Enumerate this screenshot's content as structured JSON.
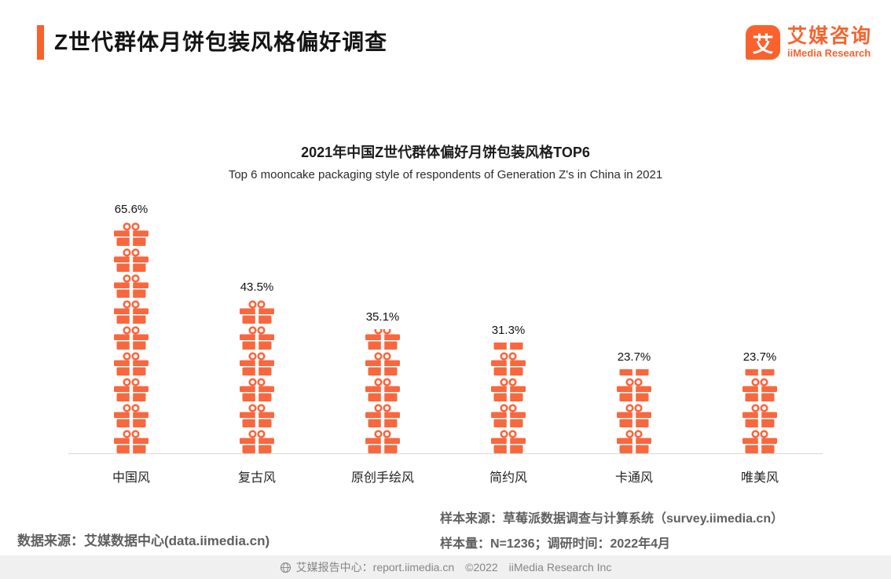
{
  "header": {
    "title": "Z世代群体月饼包装风格偏好调查",
    "logo": {
      "icon": "艾",
      "brand": "艾媒咨询",
      "sub": "iiMedia Research"
    }
  },
  "chart_data": {
    "type": "bar",
    "variant": "pictogram-gift-box-stacks",
    "title": "2021年中国Z世代群体偏好月饼包装风格TOP6",
    "subtitle": "Top 6 mooncake packaging style of respondents of Generation Z's in China  in 2021",
    "categories": [
      "中国风",
      "复古风",
      "原创手绘风",
      "简约风",
      "卡通风",
      "唯美风"
    ],
    "values": [
      65.6,
      43.5,
      35.1,
      31.3,
      23.7,
      23.7
    ],
    "value_labels": [
      "65.6%",
      "43.5%",
      "35.1%",
      "31.3%",
      "23.7%",
      "23.7%"
    ],
    "unit": "%",
    "ylim": [
      0,
      70
    ],
    "grid": false,
    "legend": "none",
    "bar_color": "#f9673f",
    "accent_color": "#f9622d"
  },
  "footnotes": {
    "left": "数据来源：艾媒数据中心(data.iimedia.cn)",
    "right_line1": "样本来源：草莓派数据调查与计算系统（survey.iimedia.cn）",
    "right_line2": "样本量：N=1236；调研时间：2022年4月"
  },
  "footer": {
    "text": "艾媒报告中心：report.iimedia.cn　©2022　iiMedia Research Inc"
  }
}
